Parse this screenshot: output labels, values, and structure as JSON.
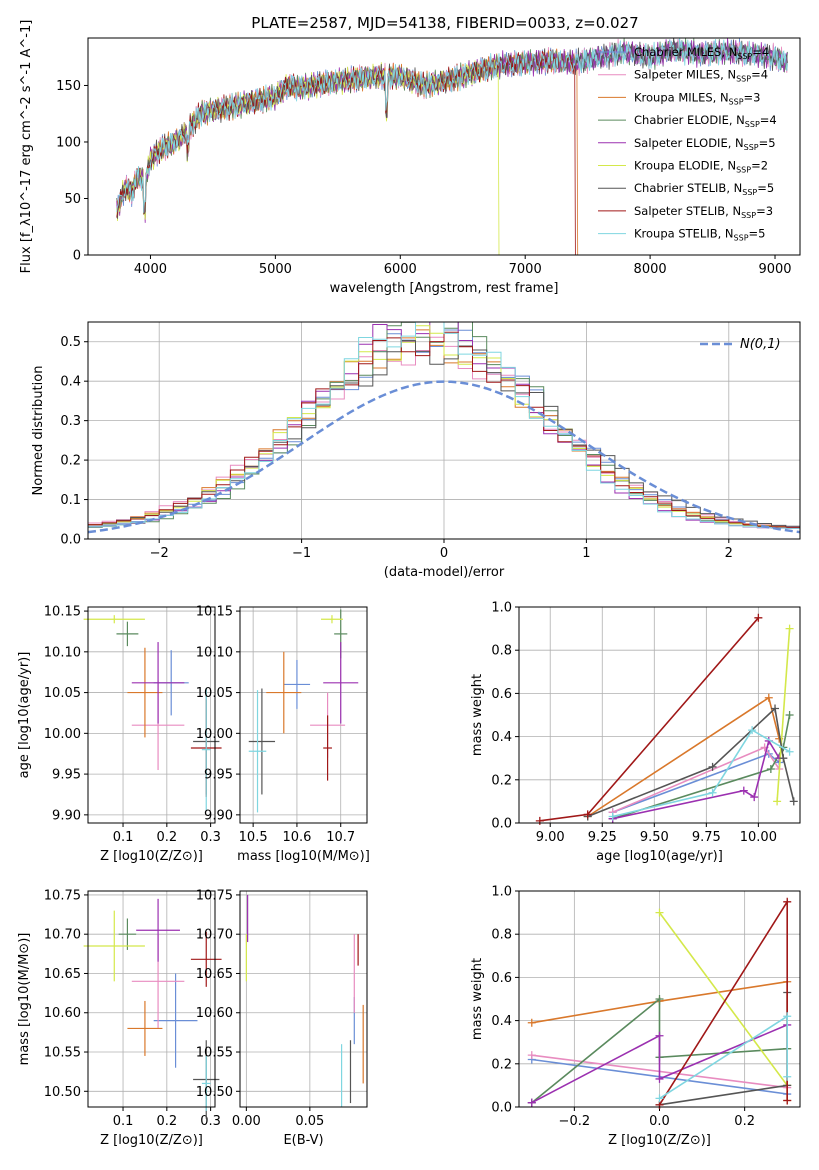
{
  "colors": {
    "chabrier_miles": "#6a8ed6",
    "salpeter_miles": "#e88cc0",
    "kroupa_miles": "#d9782b",
    "chabrier_elodie": "#5a8a5e",
    "salpeter_elodie": "#9b30b0",
    "kroupa_elodie": "#d4e84a",
    "chabrier_stelib": "#555555",
    "salpeter_stelib": "#a01818",
    "kroupa_stelib": "#7fd6e0"
  },
  "chart_data": [
    {
      "type": "line",
      "title": "PLATE=2587, MJD=54138, FIBERID=0033, z=0.027",
      "xlabel": "wavelength [Angstrom, rest frame]",
      "ylabel": "Flux [f_λ10^-17 erg cm^-2 s^-1 A^-1]",
      "xlim": [
        3500,
        9200
      ],
      "ylim": [
        0,
        192
      ],
      "xticks": [
        "4000",
        "5000",
        "6000",
        "7000",
        "8000",
        "9000"
      ],
      "yticks": [
        "0",
        "50",
        "100",
        "150"
      ],
      "legend_position": "top-right",
      "legend": [
        {
          "key": "chabrier_miles",
          "base": "Chabrier MILES, N",
          "sub": "SSP",
          "tail": "=4"
        },
        {
          "key": "salpeter_miles",
          "base": "Salpeter MILES, N",
          "sub": "SSP",
          "tail": "=4"
        },
        {
          "key": "kroupa_miles",
          "base": "Kroupa MILES, N",
          "sub": "SSP",
          "tail": "=3"
        },
        {
          "key": "chabrier_elodie",
          "base": "Chabrier ELODIE, N",
          "sub": "SSP",
          "tail": "=4"
        },
        {
          "key": "salpeter_elodie",
          "base": "Salpeter ELODIE, N",
          "sub": "SSP",
          "tail": "=5"
        },
        {
          "key": "kroupa_elodie",
          "base": "Kroupa ELODIE, N",
          "sub": "SSP",
          "tail": "=2"
        },
        {
          "key": "chabrier_stelib",
          "base": "Chabrier STELIB, N",
          "sub": "SSP",
          "tail": "=5"
        },
        {
          "key": "salpeter_stelib",
          "base": "Salpeter STELIB, N",
          "sub": "SSP",
          "tail": "=3"
        },
        {
          "key": "kroupa_stelib",
          "base": "Kroupa STELIB, N",
          "sub": "SSP",
          "tail": "=5"
        }
      ],
      "spectrum_points": [
        [
          3730,
          40
        ],
        [
          3800,
          60
        ],
        [
          3850,
          55
        ],
        [
          3900,
          70
        ],
        [
          3960,
          65
        ],
        [
          4000,
          85
        ],
        [
          4100,
          95
        ],
        [
          4200,
          100
        ],
        [
          4300,
          110
        ],
        [
          4400,
          125
        ],
        [
          4500,
          128
        ],
        [
          4600,
          130
        ],
        [
          4800,
          135
        ],
        [
          5000,
          140
        ],
        [
          5100,
          150
        ],
        [
          5200,
          148
        ],
        [
          5400,
          152
        ],
        [
          5600,
          155
        ],
        [
          5800,
          158
        ],
        [
          6000,
          158
        ],
        [
          6200,
          150
        ],
        [
          6400,
          155
        ],
        [
          6600,
          162
        ],
        [
          6800,
          168
        ],
        [
          7000,
          170
        ],
        [
          7200,
          172
        ],
        [
          7400,
          170
        ],
        [
          7600,
          175
        ],
        [
          7800,
          180
        ],
        [
          8000,
          175
        ],
        [
          8200,
          182
        ],
        [
          8400,
          178
        ],
        [
          8600,
          180
        ],
        [
          8800,
          178
        ],
        [
          9000,
          175
        ],
        [
          9100,
          170
        ]
      ],
      "spectrum_dropouts": [
        {
          "key": "kroupa_miles",
          "from_wavelength": 7420
        },
        {
          "key": "kroupa_elodie",
          "from_wavelength": 6790
        },
        {
          "key": "salpeter_stelib",
          "from_wavelength": 7400
        }
      ]
    },
    {
      "type": "area",
      "xlabel": "(data-model)/error",
      "ylabel": "Normed distribution",
      "xlim": [
        -2.5,
        2.5
      ],
      "ylim": [
        0,
        0.55
      ],
      "xticks": [
        "−2",
        "−1",
        "0",
        "1",
        "2"
      ],
      "yticks": [
        "0.0",
        "0.1",
        "0.2",
        "0.3",
        "0.4",
        "0.5"
      ],
      "legend_position": "top-right",
      "reference_curve": {
        "name": "N(0,1)",
        "mean": 0,
        "sigma": 1,
        "color": "#6a8ed6"
      },
      "histograms": "step histograms of residuals per model, approximately N(0,0.85)"
    },
    {
      "type": "scatter",
      "name": "age_vs_Z",
      "xlabel": "Z [log10(Z/Z⊙)]",
      "ylabel": "age [log10(age/yr)]",
      "xlim": [
        0.02,
        0.31
      ],
      "ylim": [
        9.89,
        10.155
      ],
      "xticks": [
        "0.1",
        "0.2",
        "0.3"
      ],
      "yticks": [
        "9.90",
        "9.95",
        "10.00",
        "10.05",
        "10.10",
        "10.15"
      ],
      "points": [
        {
          "key": "chabrier_miles",
          "x": 0.21,
          "y": 10.062,
          "xerr": 0.04,
          "yerr": 0.04
        },
        {
          "key": "salpeter_miles",
          "x": 0.18,
          "y": 10.01,
          "xerr": 0.06,
          "yerr": 0.055
        },
        {
          "key": "kroupa_miles",
          "x": 0.15,
          "y": 10.05,
          "xerr": 0.04,
          "yerr": 0.055
        },
        {
          "key": "chabrier_elodie",
          "x": 0.11,
          "y": 10.122,
          "xerr": 0.025,
          "yerr": 0.015
        },
        {
          "key": "salpeter_elodie",
          "x": 0.18,
          "y": 10.062,
          "xerr": 0.06,
          "yerr": 0.05
        },
        {
          "key": "kroupa_elodie",
          "x": 0.08,
          "y": 10.14,
          "xerr": 0.07,
          "yerr": 0.005
        },
        {
          "key": "chabrier_stelib",
          "x": 0.29,
          "y": 9.99,
          "xerr": 0.03,
          "yerr": 0.065
        },
        {
          "key": "salpeter_stelib",
          "x": 0.29,
          "y": 9.982,
          "xerr": 0.035,
          "yerr": 0.06
        },
        {
          "key": "kroupa_stelib",
          "x": 0.29,
          "y": 9.98,
          "xerr": 0.01,
          "yerr": 0.075
        }
      ]
    },
    {
      "type": "scatter",
      "name": "age_vs_mass",
      "xlabel": "mass [log10(M/M⊙)]",
      "ylabel": "",
      "xlim": [
        10.47,
        10.76
      ],
      "ylim": [
        9.89,
        10.155
      ],
      "xticks": [
        "10.5",
        "10.6",
        "10.7"
      ],
      "yticks": [
        "9.90",
        "9.95",
        "10.00",
        "10.05",
        "10.10",
        "10.15"
      ],
      "points": [
        {
          "key": "chabrier_miles",
          "x": 10.6,
          "y": 10.06,
          "xerr": 0.03,
          "yerr": 0.03
        },
        {
          "key": "salpeter_miles",
          "x": 10.67,
          "y": 10.01,
          "xerr": 0.04,
          "yerr": 0.04
        },
        {
          "key": "kroupa_miles",
          "x": 10.57,
          "y": 10.05,
          "xerr": 0.04,
          "yerr": 0.05
        },
        {
          "key": "chabrier_elodie",
          "x": 10.7,
          "y": 10.122,
          "xerr": 0.015,
          "yerr": 0.03
        },
        {
          "key": "salpeter_elodie",
          "x": 10.7,
          "y": 10.062,
          "xerr": 0.04,
          "yerr": 0.05
        },
        {
          "key": "kroupa_elodie",
          "x": 10.68,
          "y": 10.14,
          "xerr": 0.025,
          "yerr": 0.005
        },
        {
          "key": "chabrier_stelib",
          "x": 10.52,
          "y": 9.99,
          "xerr": 0.03,
          "yerr": 0.065
        },
        {
          "key": "salpeter_stelib",
          "x": 10.67,
          "y": 9.982,
          "xerr": 0.01,
          "yerr": 0.04
        },
        {
          "key": "kroupa_stelib",
          "x": 10.51,
          "y": 9.978,
          "xerr": 0.02,
          "yerr": 0.075
        }
      ]
    },
    {
      "type": "line",
      "name": "massweight_vs_age",
      "xlabel": "age [log10(age/yr)]",
      "ylabel": "mass weight",
      "xlim": [
        8.85,
        10.2
      ],
      "ylim": [
        0,
        1.0
      ],
      "xticks": [
        "9.00",
        "9.25",
        "9.50",
        "9.75",
        "10.00"
      ],
      "yticks": [
        "0.0",
        "0.2",
        "0.4",
        "0.6",
        "0.8",
        "1.0"
      ],
      "series": [
        {
          "key": "chabrier_miles",
          "x": [
            9.3,
            10.05,
            10.1
          ],
          "y": [
            0.05,
            0.32,
            0.28
          ]
        },
        {
          "key": "salpeter_miles",
          "x": [
            9.3,
            10.03,
            10.1
          ],
          "y": [
            0.05,
            0.35,
            0.25
          ]
        },
        {
          "key": "kroupa_miles",
          "x": [
            9.18,
            10.05,
            10.1
          ],
          "y": [
            0.03,
            0.58,
            0.39
          ]
        },
        {
          "key": "chabrier_elodie",
          "x": [
            9.3,
            10.06,
            10.12,
            10.15
          ],
          "y": [
            0.02,
            0.25,
            0.35,
            0.5
          ]
        },
        {
          "key": "salpeter_elodie",
          "x": [
            9.3,
            9.93,
            9.98,
            10.05,
            10.1
          ],
          "y": [
            0.02,
            0.15,
            0.12,
            0.38,
            0.3
          ]
        },
        {
          "key": "kroupa_elodie",
          "x": [
            10.09,
            10.15
          ],
          "y": [
            0.1,
            0.9
          ]
        },
        {
          "key": "chabrier_stelib",
          "x": [
            9.18,
            9.78,
            10.08,
            10.12,
            10.17
          ],
          "y": [
            0.03,
            0.26,
            0.53,
            0.3,
            0.1
          ]
        },
        {
          "key": "salpeter_stelib",
          "x": [
            8.95,
            9.18,
            10.0
          ],
          "y": [
            0.01,
            0.04,
            0.95
          ]
        },
        {
          "key": "kroupa_stelib",
          "x": [
            9.3,
            9.78,
            9.97,
            10.15
          ],
          "y": [
            0.03,
            0.14,
            0.43,
            0.33
          ]
        }
      ]
    },
    {
      "type": "scatter",
      "name": "mass_vs_Z",
      "xlabel": "Z [log10(Z/Z⊙)]",
      "ylabel": "mass [log10(M/M⊙)]",
      "xlim": [
        0.02,
        0.31
      ],
      "ylim": [
        10.48,
        10.755
      ],
      "xticks": [
        "0.1",
        "0.2",
        "0.3"
      ],
      "yticks": [
        "10.50",
        "10.55",
        "10.60",
        "10.65",
        "10.70",
        "10.75"
      ],
      "points": [
        {
          "key": "chabrier_miles",
          "x": 0.22,
          "y": 10.59,
          "xerr": 0.05,
          "yerr": 0.06
        },
        {
          "key": "salpeter_miles",
          "x": 0.18,
          "y": 10.64,
          "xerr": 0.06,
          "yerr": 0.06
        },
        {
          "key": "kroupa_miles",
          "x": 0.15,
          "y": 10.58,
          "xerr": 0.04,
          "yerr": 0.035
        },
        {
          "key": "chabrier_elodie",
          "x": 0.11,
          "y": 10.7,
          "xerr": 0.02,
          "yerr": 0.02
        },
        {
          "key": "salpeter_elodie",
          "x": 0.18,
          "y": 10.705,
          "xerr": 0.05,
          "yerr": 0.04
        },
        {
          "key": "kroupa_elodie",
          "x": 0.08,
          "y": 10.685,
          "xerr": 0.07,
          "yerr": 0.045
        },
        {
          "key": "chabrier_stelib",
          "x": 0.29,
          "y": 10.515,
          "xerr": 0.03,
          "yerr": 0.05
        },
        {
          "key": "salpeter_stelib",
          "x": 0.29,
          "y": 10.668,
          "xerr": 0.035,
          "yerr": 0.035
        },
        {
          "key": "kroupa_stelib",
          "x": 0.29,
          "y": 10.51,
          "xerr": 0.01,
          "yerr": 0.035
        }
      ]
    },
    {
      "type": "scatter",
      "name": "mass_vs_ebv",
      "xlabel": "E(B-V)",
      "ylabel": "",
      "xlim": [
        -0.005,
        0.095
      ],
      "ylim": [
        10.48,
        10.755
      ],
      "xticks": [
        "0.00",
        "0.05"
      ],
      "yticks": [
        "10.50",
        "10.55",
        "10.60",
        "10.65",
        "10.70",
        "10.75"
      ],
      "points": [
        {
          "key": "chabrier_miles",
          "x": 0.085,
          "y": 10.59,
          "yerr": 0.03
        },
        {
          "key": "salpeter_miles",
          "x": 0.085,
          "y": 10.65,
          "yerr": 0.05
        },
        {
          "key": "kroupa_miles",
          "x": 0.092,
          "y": 10.56,
          "yerr": 0.05
        },
        {
          "key": "salpeter_elodie",
          "x": 0.001,
          "y": 10.72,
          "yerr": 0.03
        },
        {
          "key": "kroupa_elodie",
          "x": 0.0,
          "y": 10.67,
          "yerr": 0.03
        },
        {
          "key": "chabrier_stelib",
          "x": 0.082,
          "y": 10.525,
          "yerr": 0.04
        },
        {
          "key": "salpeter_stelib",
          "x": 0.088,
          "y": 10.68,
          "yerr": 0.02
        },
        {
          "key": "kroupa_stelib",
          "x": 0.075,
          "y": 10.52,
          "yerr": 0.04
        }
      ]
    },
    {
      "type": "line",
      "name": "massweight_vs_Z",
      "xlabel": "Z [log10(Z/Z⊙)]",
      "ylabel": "mass weight",
      "xlim": [
        -0.33,
        0.33
      ],
      "ylim": [
        0,
        1.0
      ],
      "xticks": [
        "−0.2",
        "0.0",
        "0.2"
      ],
      "yticks": [
        "0.0",
        "0.2",
        "0.4",
        "0.6",
        "0.8",
        "1.0"
      ],
      "series": [
        {
          "key": "chabrier_miles",
          "x": [
            -0.3,
            0.3
          ],
          "y": [
            0.22,
            0.06
          ]
        },
        {
          "key": "salpeter_miles",
          "x": [
            -0.3,
            0.3
          ],
          "y": [
            0.24,
            0.09
          ]
        },
        {
          "key": "kroupa_miles",
          "x": [
            -0.3,
            0.0,
            0.3,
            0.3
          ],
          "y": [
            0.39,
            0.49,
            0.58,
            0.03
          ]
        },
        {
          "key": "chabrier_elodie",
          "x": [
            -0.3,
            0.0,
            0.0,
            0.3
          ],
          "y": [
            0.02,
            0.5,
            0.23,
            0.27
          ]
        },
        {
          "key": "salpeter_elodie",
          "x": [
            -0.3,
            0.0,
            0.0,
            0.3
          ],
          "y": [
            0.02,
            0.33,
            0.13,
            0.38
          ]
        },
        {
          "key": "kroupa_elodie",
          "x": [
            0.0,
            0.3
          ],
          "y": [
            0.9,
            0.1
          ]
        },
        {
          "key": "chabrier_stelib",
          "x": [
            0.0,
            0.3,
            0.3
          ],
          "y": [
            0.01,
            0.1,
            0.53
          ]
        },
        {
          "key": "salpeter_stelib",
          "x": [
            0.0,
            0.3,
            0.3
          ],
          "y": [
            0.01,
            0.95,
            0.03
          ]
        },
        {
          "key": "kroupa_stelib",
          "x": [
            0.0,
            0.3,
            0.3
          ],
          "y": [
            0.04,
            0.42,
            0.14
          ]
        }
      ]
    }
  ]
}
